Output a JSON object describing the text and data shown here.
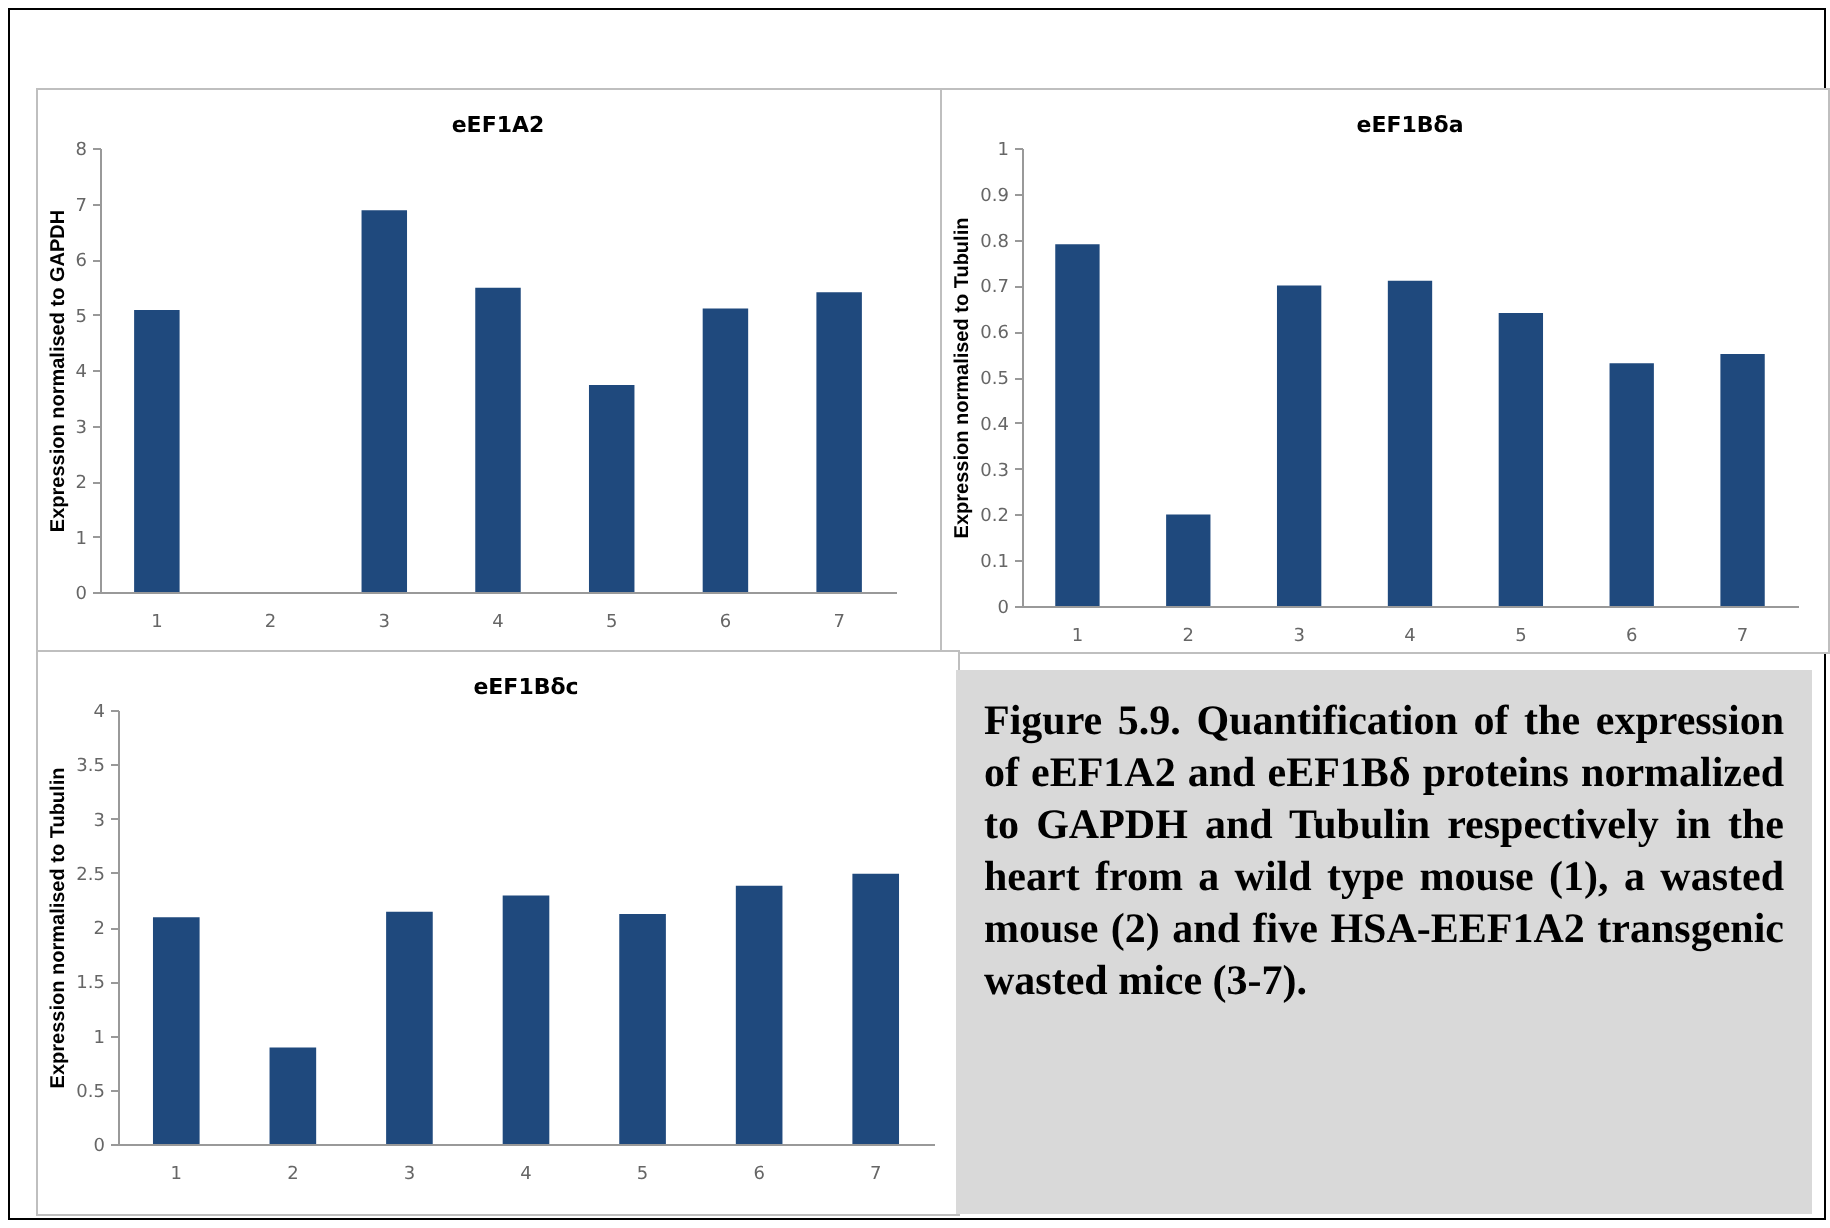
{
  "chart_data": [
    {
      "type": "bar",
      "title": "eEF1A2",
      "ylabel": "Expression normalised to GAPDH",
      "categories": [
        "1",
        "2",
        "3",
        "4",
        "5",
        "6",
        "7"
      ],
      "values": [
        5.08,
        0,
        6.88,
        5.48,
        3.73,
        5.11,
        5.4
      ],
      "color": "#1f497d",
      "ylim": [
        0,
        8
      ],
      "yticks": [
        0,
        1,
        2,
        3,
        4,
        5,
        6,
        7,
        8
      ]
    },
    {
      "type": "bar",
      "title": "eEF1Bδa",
      "ylabel": "Expression normalised to Tubulin",
      "categories": [
        "1",
        "2",
        "3",
        "4",
        "5",
        "6",
        "7"
      ],
      "values": [
        0.79,
        0.2,
        0.7,
        0.71,
        0.64,
        0.53,
        0.55
      ],
      "color": "#1f497d",
      "ylim": [
        0,
        1
      ],
      "yticks": [
        0,
        0.1,
        0.2,
        0.3,
        0.4,
        0.5,
        0.6,
        0.7,
        0.8,
        0.9,
        1
      ]
    },
    {
      "type": "bar",
      "title": "eEF1Bδc",
      "ylabel": "Expression normalised to Tubulin",
      "categories": [
        "1",
        "2",
        "3",
        "4",
        "5",
        "6",
        "7"
      ],
      "values": [
        2.09,
        0.89,
        2.14,
        2.29,
        2.12,
        2.38,
        2.49
      ],
      "color": "#1f497d",
      "ylim": [
        0,
        4
      ],
      "yticks": [
        0,
        0.5,
        1,
        1.5,
        2,
        2.5,
        3,
        3.5,
        4
      ]
    },
    {
      "type": "other",
      "annotations": [
        "Figure 5.9. Quantification of the expression of eEF1A2 and eEF1Bδ proteins normalized to GAPDH and Tubulin respectively in the heart from a wild type mouse (1), a wasted mouse (2) and five HSA-EEF1A2 transgenic wasted mice (3-7)."
      ]
    }
  ]
}
